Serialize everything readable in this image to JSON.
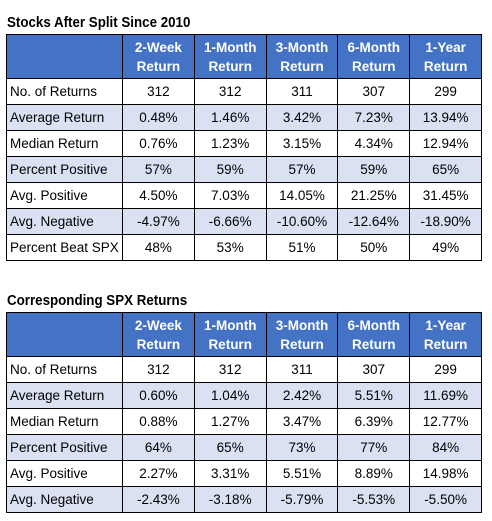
{
  "tables": [
    {
      "title": "Stocks After Split Since 2010",
      "headers": [
        [
          "2-Week",
          "Return"
        ],
        [
          "1-Month",
          "Return"
        ],
        [
          "3-Month",
          "Return"
        ],
        [
          "6-Month",
          "Return"
        ],
        [
          "1-Year",
          "Return"
        ]
      ],
      "rows": [
        {
          "label": "No. of Returns",
          "values": [
            "312",
            "312",
            "311",
            "307",
            "299"
          ]
        },
        {
          "label": "Average Return",
          "values": [
            "0.48%",
            "1.46%",
            "3.42%",
            "7.23%",
            "13.94%"
          ]
        },
        {
          "label": "Median Return",
          "values": [
            "0.76%",
            "1.23%",
            "3.15%",
            "4.34%",
            "12.94%"
          ]
        },
        {
          "label": "Percent Positive",
          "values": [
            "57%",
            "59%",
            "57%",
            "59%",
            "65%"
          ]
        },
        {
          "label": "Avg. Positive",
          "values": [
            "4.50%",
            "7.03%",
            "14.05%",
            "21.25%",
            "31.45%"
          ]
        },
        {
          "label": "Avg. Negative",
          "values": [
            "-4.97%",
            "-6.66%",
            "-10.60%",
            "-12.64%",
            "-18.90%"
          ]
        },
        {
          "label": "Percent Beat SPX",
          "values": [
            "48%",
            "53%",
            "51%",
            "50%",
            "49%"
          ]
        }
      ]
    },
    {
      "title": "Corresponding SPX Returns",
      "headers": [
        [
          "2-Week",
          "Return"
        ],
        [
          "1-Month",
          "Return"
        ],
        [
          "3-Month",
          "Return"
        ],
        [
          "6-Month",
          "Return"
        ],
        [
          "1-Year",
          "Return"
        ]
      ],
      "rows": [
        {
          "label": "No. of Returns",
          "values": [
            "312",
            "312",
            "311",
            "307",
            "299"
          ]
        },
        {
          "label": "Average Return",
          "values": [
            "0.60%",
            "1.04%",
            "2.42%",
            "5.51%",
            "11.69%"
          ]
        },
        {
          "label": "Median Return",
          "values": [
            "0.88%",
            "1.27%",
            "3.47%",
            "6.39%",
            "12.77%"
          ]
        },
        {
          "label": "Percent Positive",
          "values": [
            "64%",
            "65%",
            "73%",
            "77%",
            "84%"
          ]
        },
        {
          "label": "Avg. Positive",
          "values": [
            "2.27%",
            "3.31%",
            "5.51%",
            "8.89%",
            "14.98%"
          ]
        },
        {
          "label": "Avg. Negative",
          "values": [
            "-2.43%",
            "-3.18%",
            "-5.79%",
            "-5.53%",
            "-5.50%"
          ]
        }
      ]
    }
  ],
  "colors": {
    "header_background": "#4472c4",
    "header_text": "#ffffff",
    "band_row": "#d9e1f2",
    "plain_row": "#ffffff",
    "border": "#000000"
  }
}
